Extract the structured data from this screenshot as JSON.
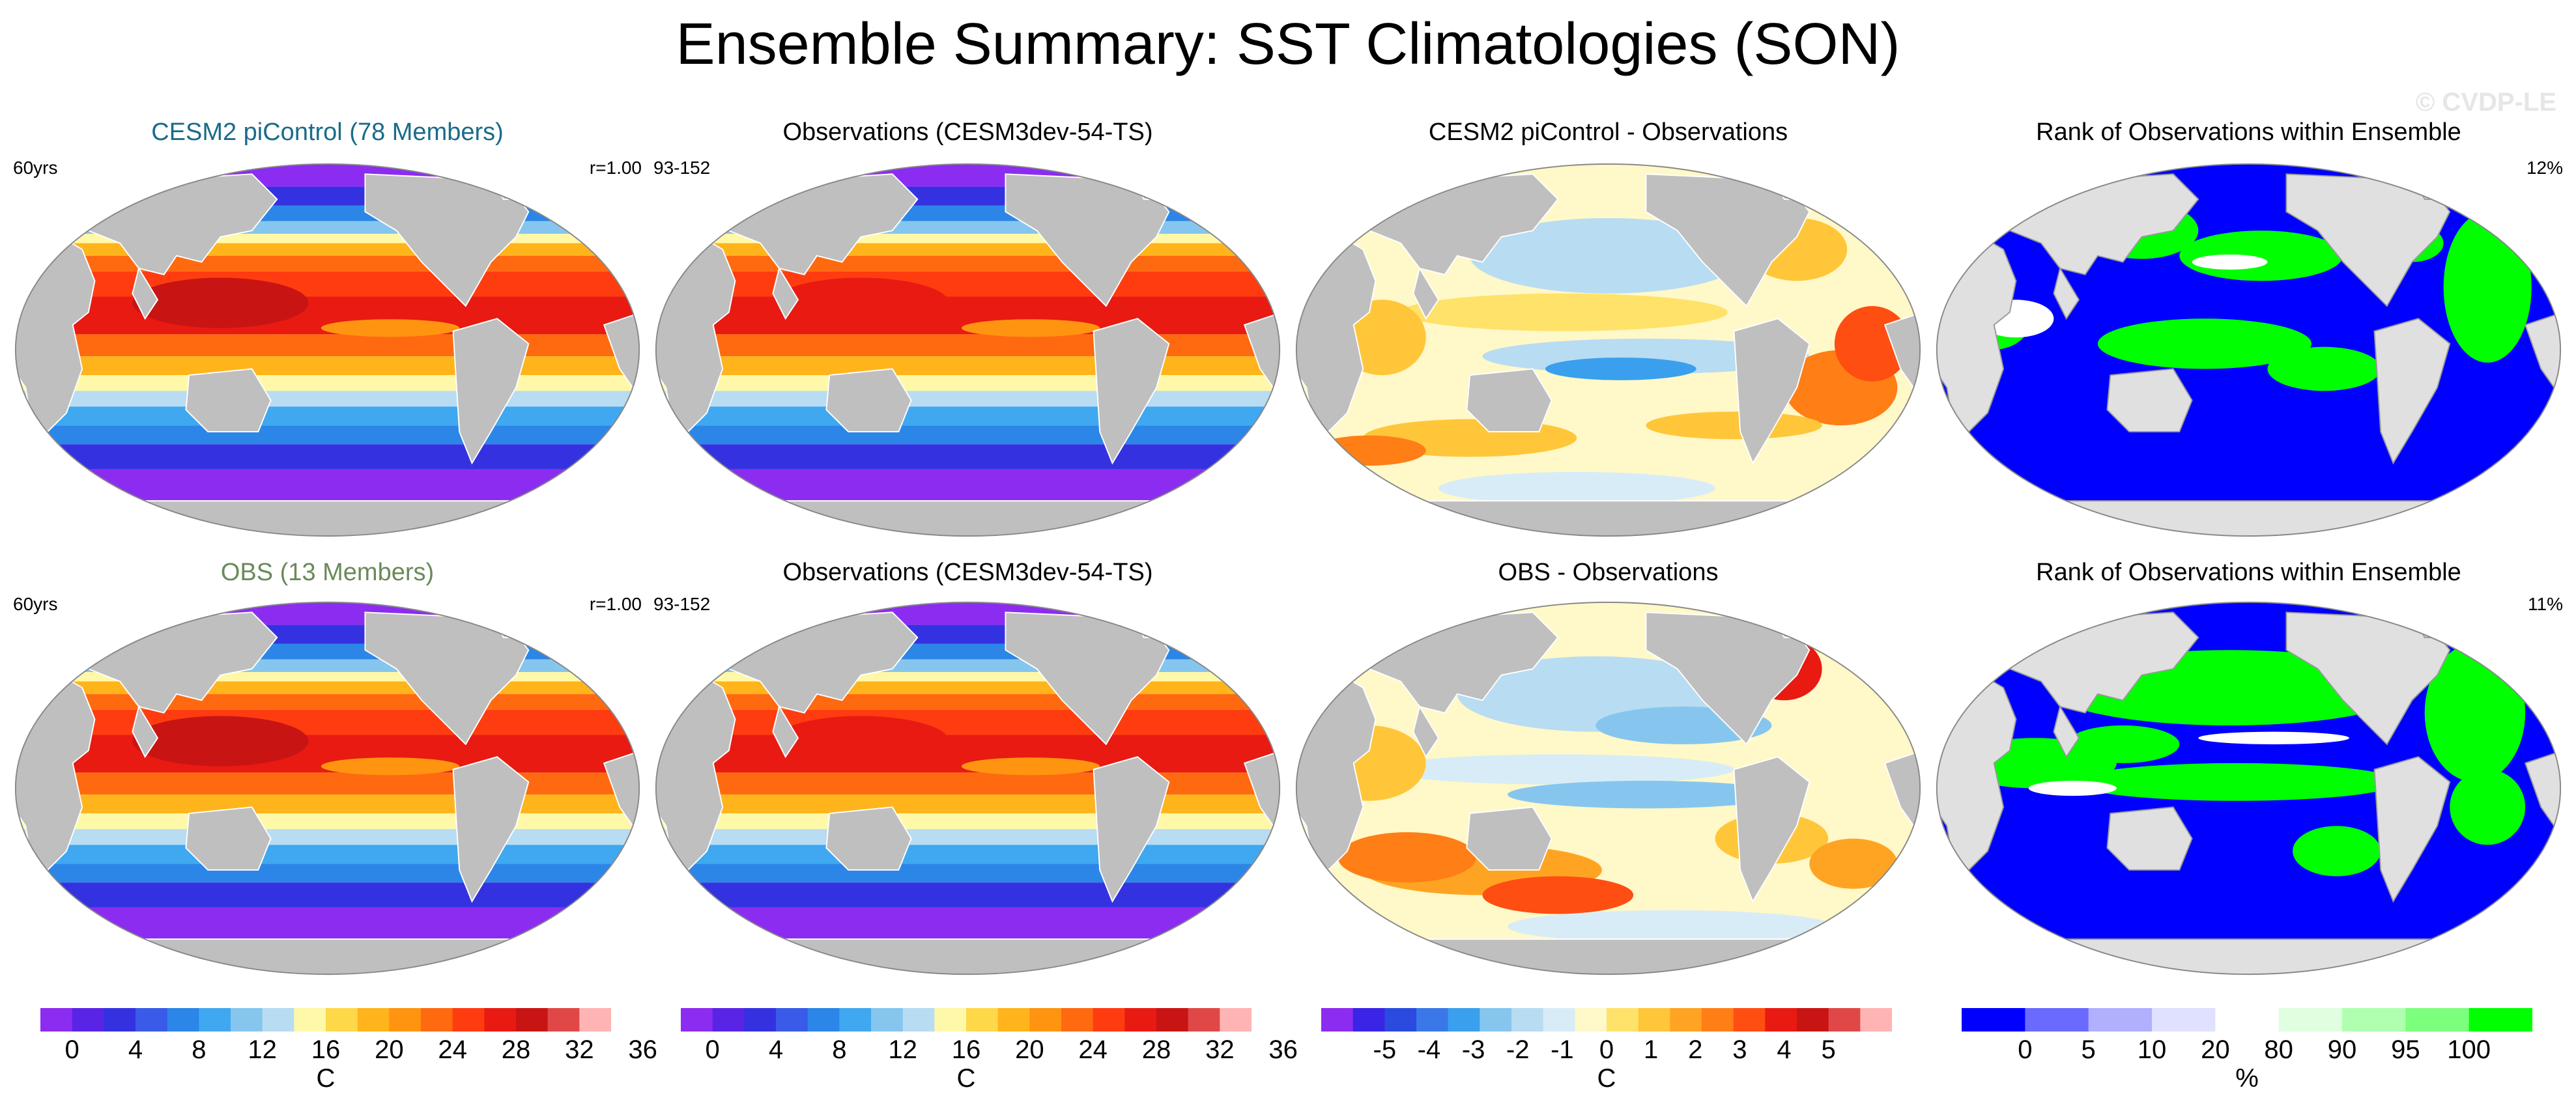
{
  "title": "Ensemble Summary: SST Climatologies (SON)",
  "watermark": "© CVDP-LE",
  "colors": {
    "land": "#bfbfbf",
    "land_rank": "#e0e0e0",
    "ensemble_title_1": "#1a6b8a",
    "ensemble_title_2": "#6a8a5a",
    "temp_scale": [
      "#8c2cf0",
      "#5a24e6",
      "#3432e0",
      "#3a5ae8",
      "#2b86e8",
      "#3fa8f0",
      "#86c6ee",
      "#b8dcf2",
      "#fff8a8",
      "#ffd84a",
      "#ffb41c",
      "#ff9410",
      "#ff6a10",
      "#ff3c10",
      "#e81a12",
      "#c91414",
      "#e04848",
      "#ffb4b4"
    ],
    "diff_scale": [
      "#8c2cf0",
      "#3a24e6",
      "#2a4ae0",
      "#3a78e8",
      "#3aa0ee",
      "#86c6ee",
      "#b8dcf2",
      "#d8ecf8",
      "#fff8c8",
      "#ffe26a",
      "#ffc63a",
      "#ffa422",
      "#ff7e16",
      "#ff4e12",
      "#e81a12",
      "#c91414",
      "#e04848",
      "#ffb4b4"
    ],
    "rank_scale": [
      "#0000ff",
      "#6a6aff",
      "#b0b0ff",
      "#e0e0ff",
      "#ffffff",
      "#e0ffe0",
      "#b0ffb0",
      "#7cff7c",
      "#00ff00"
    ]
  },
  "rows": [
    {
      "panels": [
        {
          "title": "CESM2 piControl (78 Members)",
          "left_text": "60yrs",
          "right_text": "r=1.00",
          "kind": "temp"
        },
        {
          "title": "Observations (CESM3dev-54-TS)",
          "left_text": "93-152",
          "right_text": "",
          "kind": "temp"
        },
        {
          "title": "CESM2 piControl - Observations",
          "left_text": "",
          "right_text": "",
          "kind": "diff"
        },
        {
          "title": "Rank of Observations within Ensemble",
          "left_text": "",
          "right_text": "12%",
          "kind": "rank"
        }
      ]
    },
    {
      "panels": [
        {
          "title": "OBS (13 Members)",
          "left_text": "60yrs",
          "right_text": "r=1.00",
          "kind": "temp"
        },
        {
          "title": "Observations (CESM3dev-54-TS)",
          "left_text": "93-152",
          "right_text": "",
          "kind": "temp"
        },
        {
          "title": "OBS - Observations",
          "left_text": "",
          "right_text": "",
          "kind": "diff"
        },
        {
          "title": "Rank of Observations within Ensemble",
          "left_text": "",
          "right_text": "11%",
          "kind": "rank"
        }
      ]
    }
  ],
  "colorbars": [
    {
      "unit": "C",
      "labels": [
        "0",
        "4",
        "8",
        "12",
        "16",
        "20",
        "24",
        "28",
        "32",
        "36"
      ],
      "kind": "temp"
    },
    {
      "unit": "C",
      "labels": [
        "0",
        "4",
        "8",
        "12",
        "16",
        "20",
        "24",
        "28",
        "32",
        "36"
      ],
      "kind": "temp"
    },
    {
      "unit": "C",
      "labels": [
        "-5",
        "-4",
        "-3",
        "-2",
        "-1",
        "0",
        "1",
        "2",
        "3",
        "4",
        "5"
      ],
      "kind": "diff"
    },
    {
      "unit": "%",
      "labels": [
        "0",
        "5",
        "10",
        "20",
        "80",
        "90",
        "95",
        "100"
      ],
      "kind": "rank"
    }
  ]
}
